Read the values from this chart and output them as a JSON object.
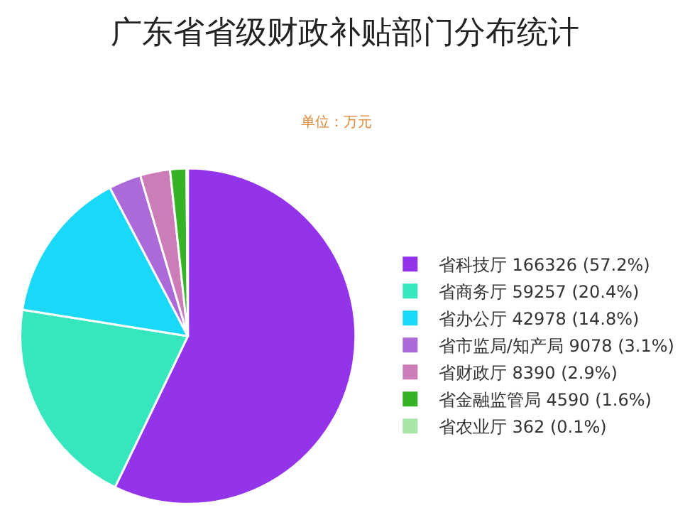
{
  "chart_data": {
    "type": "pie",
    "title": "广东省省级财政补贴部门分布统计",
    "subtitle": "单位：万元",
    "categories": [
      "省科技厅 166326 (57.2%)",
      "省商务厅 59257 (20.4%)",
      "省办公厅 42978 (14.8%)",
      "省市监局/知产局 9078 (3.1%)",
      "省财政厅 8390 (2.9%)",
      "省金融监管局 4590 (1.6%)",
      "省农业厅 362 (0.1%)"
    ],
    "values": [
      166326,
      59257,
      42978,
      9078,
      8390,
      4590,
      362
    ],
    "colors": [
      "#9333ea",
      "#36e6bc",
      "#1ad8f8",
      "#ab6ad8",
      "#cc7cb6",
      "#36b226",
      "#a8e6a8"
    ],
    "legend": "right"
  }
}
